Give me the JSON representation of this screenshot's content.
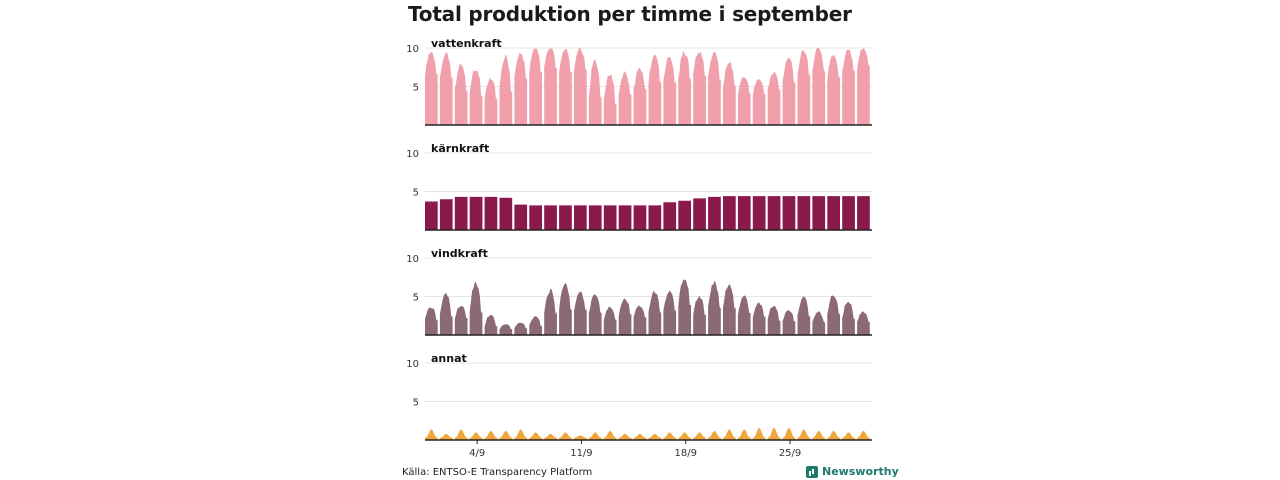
{
  "title": "Total produktion per timme i september",
  "source": "Källa: ENTSO-E Transparency Platform",
  "brand": "Newsworthy",
  "colors": {
    "vattenkraft": "#f09fab",
    "karnkraft": "#8a1a4c",
    "vindkraft": "#8c6a74",
    "annat": "#f0a63a",
    "grid": "#e4e4e4",
    "baseline": "#222222",
    "brand": "#1f7a6a"
  },
  "chart_data": {
    "type": "area",
    "title": "Total produktion per timme i september",
    "xlabel": "",
    "ylabel": "",
    "x_ticks": [
      "4/9",
      "11/9",
      "18/9",
      "25/9"
    ],
    "x_tick_days": [
      4,
      11,
      18,
      25
    ],
    "days": 30,
    "ylim": [
      0,
      10
    ],
    "y_ticks": [
      "10",
      "5"
    ],
    "series": [
      {
        "name": "vattenkraft",
        "color_key": "vattenkraft",
        "daily_peak": [
          9.5,
          9.2,
          8.0,
          7.3,
          6.0,
          8.9,
          9.4,
          10.0,
          10.0,
          9.9,
          10.0,
          8.5,
          6.5,
          6.8,
          7.3,
          9.0,
          8.8,
          9.5,
          9.5,
          9.3,
          8.2,
          6.2,
          6.0,
          6.8,
          8.8,
          9.8,
          10.0,
          9.2,
          9.8,
          10.0
        ],
        "daily_low": [
          6.5,
          6.0,
          4.5,
          4.0,
          3.5,
          4.5,
          6.0,
          7.0,
          7.5,
          7.0,
          7.0,
          3.5,
          3.0,
          3.8,
          4.5,
          5.5,
          5.5,
          6.0,
          6.5,
          6.0,
          5.0,
          4.0,
          4.0,
          4.5,
          5.5,
          6.5,
          7.0,
          6.0,
          7.0,
          7.5
        ]
      },
      {
        "name": "kärnkraft",
        "color_key": "karnkraft",
        "daily_level": [
          3.7,
          4.0,
          4.3,
          4.3,
          4.3,
          4.2,
          3.3,
          3.2,
          3.2,
          3.2,
          3.2,
          3.2,
          3.2,
          3.2,
          3.2,
          3.2,
          3.6,
          3.8,
          4.1,
          4.3,
          4.4,
          4.4,
          4.4,
          4.4,
          4.4,
          4.4,
          4.4,
          4.4,
          4.4,
          4.4
        ]
      },
      {
        "name": "vindkraft",
        "color_key": "vindkraft",
        "daily_peak": [
          3.6,
          5.4,
          3.8,
          6.8,
          2.6,
          1.4,
          1.6,
          2.4,
          5.8,
          6.6,
          5.6,
          5.2,
          3.6,
          4.8,
          3.8,
          5.6,
          5.6,
          7.2,
          5.0,
          6.8,
          6.6,
          5.0,
          4.2,
          3.8,
          3.2,
          5.0,
          3.0,
          5.2,
          4.4,
          3.0
        ],
        "daily_low": [
          2.0,
          2.5,
          2.2,
          3.0,
          1.2,
          0.8,
          0.9,
          1.2,
          2.8,
          3.5,
          3.2,
          2.8,
          2.0,
          2.6,
          2.2,
          3.0,
          3.2,
          4.0,
          2.8,
          3.6,
          3.6,
          2.8,
          2.4,
          2.0,
          1.8,
          2.4,
          1.6,
          2.8,
          2.2,
          1.6
        ]
      },
      {
        "name": "annat",
        "color_key": "annat",
        "daily_peak": [
          1.4,
          0.8,
          1.4,
          1.0,
          1.2,
          1.2,
          1.4,
          1.0,
          0.8,
          1.0,
          0.6,
          1.0,
          1.2,
          0.8,
          0.8,
          0.8,
          1.0,
          1.0,
          1.0,
          1.2,
          1.4,
          1.4,
          1.6,
          1.6,
          1.6,
          1.4,
          1.2,
          1.2,
          1.0,
          1.2
        ],
        "daily_low": [
          0.3,
          0.3,
          0.3,
          0.3,
          0.3,
          0.3,
          0.3,
          0.3,
          0.3,
          0.3,
          0.3,
          0.3,
          0.3,
          0.3,
          0.3,
          0.3,
          0.3,
          0.3,
          0.3,
          0.3,
          0.3,
          0.3,
          0.3,
          0.3,
          0.3,
          0.3,
          0.3,
          0.3,
          0.3,
          0.3
        ]
      }
    ]
  }
}
